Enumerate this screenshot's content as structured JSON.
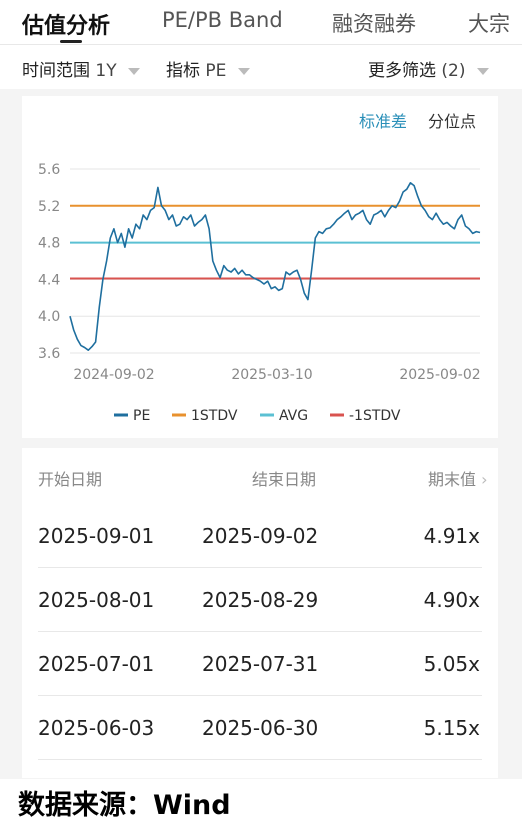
{
  "tabs": [
    {
      "label": "估值分析",
      "active": true
    },
    {
      "label": "PE/PB Band",
      "active": false
    },
    {
      "label": "融资融券",
      "active": false
    },
    {
      "label": "大宗",
      "active": false
    }
  ],
  "filters": {
    "time_label": "时间范围",
    "time_value": "1Y",
    "metric_label": "指标",
    "metric_value": "PE",
    "more_label": "更多筛选",
    "more_count": "(2)"
  },
  "chart_toggle": {
    "std": "标准差",
    "pct": "分位点",
    "selected": "标准差"
  },
  "colors": {
    "pe": "#1f6f9f",
    "stdv_up": "#e8912e",
    "avg": "#5bc0d3",
    "stdv_down": "#d9534f",
    "accent": "#2a8fb8"
  },
  "chart_data": {
    "type": "line",
    "x_labels": [
      "2024-09-02",
      "2025-03-10",
      "2025-09-02"
    ],
    "ylim": [
      3.6,
      5.6
    ],
    "y_ticks": [
      "5.6",
      "5.2",
      "4.8",
      "4.4",
      "4.0",
      "3.6"
    ],
    "grid": true,
    "legend_position": "bottom",
    "series": [
      {
        "name": "PE",
        "values": [
          4.0,
          3.85,
          3.75,
          3.68,
          3.66,
          3.63,
          3.67,
          3.72,
          4.1,
          4.4,
          4.6,
          4.85,
          4.95,
          4.8,
          4.9,
          4.75,
          4.95,
          4.85,
          5.0,
          4.95,
          5.1,
          5.05,
          5.15,
          5.18,
          5.4,
          5.2,
          5.15,
          5.05,
          5.1,
          4.98,
          5.0,
          5.08,
          5.05,
          5.1,
          4.98,
          5.02,
          5.05,
          5.1,
          4.95,
          4.6,
          4.5,
          4.42,
          4.55,
          4.5,
          4.48,
          4.52,
          4.46,
          4.5,
          4.45,
          4.45,
          4.42,
          4.4,
          4.38,
          4.35,
          4.38,
          4.3,
          4.32,
          4.28,
          4.3,
          4.48,
          4.45,
          4.48,
          4.5,
          4.4,
          4.25,
          4.18,
          4.5,
          4.85,
          4.92,
          4.9,
          4.95,
          4.96,
          5.0,
          5.05,
          5.08,
          5.12,
          5.15,
          5.05,
          5.1,
          5.12,
          5.15,
          5.05,
          5.0,
          5.1,
          5.12,
          5.15,
          5.08,
          5.15,
          5.2,
          5.18,
          5.25,
          5.35,
          5.38,
          5.45,
          5.42,
          5.3,
          5.2,
          5.15,
          5.08,
          5.05,
          5.12,
          5.05,
          5.0,
          5.02,
          4.98,
          4.95,
          5.05,
          5.1,
          4.98,
          4.95,
          4.9,
          4.92,
          4.91
        ]
      },
      {
        "name": "1STDV",
        "values": [
          5.2
        ]
      },
      {
        "name": "AVG",
        "values": [
          4.8
        ]
      },
      {
        "name": "-1STDV",
        "values": [
          4.41
        ]
      }
    ]
  },
  "table": {
    "headers": [
      "开始日期",
      "结束日期",
      "期末值"
    ],
    "rows": [
      [
        "2025-09-01",
        "2025-09-02",
        "4.91x"
      ],
      [
        "2025-08-01",
        "2025-08-29",
        "4.90x"
      ],
      [
        "2025-07-01",
        "2025-07-31",
        "5.05x"
      ],
      [
        "2025-06-03",
        "2025-06-30",
        "5.15x"
      ]
    ]
  },
  "footer": {
    "source": "数据来源：Wind"
  }
}
